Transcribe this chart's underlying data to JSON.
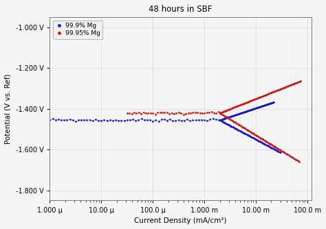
{
  "title": "48 hours in SBF",
  "xlabel": "Current Density (mA/cm²)",
  "ylabel": "Potential (V vs. Ref)",
  "ylim": [
    -1.85,
    -0.95
  ],
  "yticks": [
    -1.8,
    -1.6,
    -1.4,
    -1.2,
    -1.0
  ],
  "ytick_labels": [
    "-1.800 V",
    "-1.600 V",
    "-1.400 V",
    "-1.200 V",
    "-1.000 V"
  ],
  "xtick_vals": [
    1e-06,
    1e-05,
    0.0001,
    0.001,
    0.01,
    0.1
  ],
  "xtick_labels": [
    "1.000 μ",
    "10.00 μ",
    "100.0 μ",
    "1.000 m",
    "10.00 m",
    "100.0 m"
  ],
  "blue_label": "99.9% Mg",
  "red_label": "99.95% Mg",
  "blue_color": "#1a1acc",
  "red_color": "#cc1a1a",
  "background_color": "#f5f5f5",
  "E_corr_blue": -1.455,
  "i_corr_blue": 0.002,
  "E_corr_red": -1.42,
  "i_corr_red": 0.002
}
